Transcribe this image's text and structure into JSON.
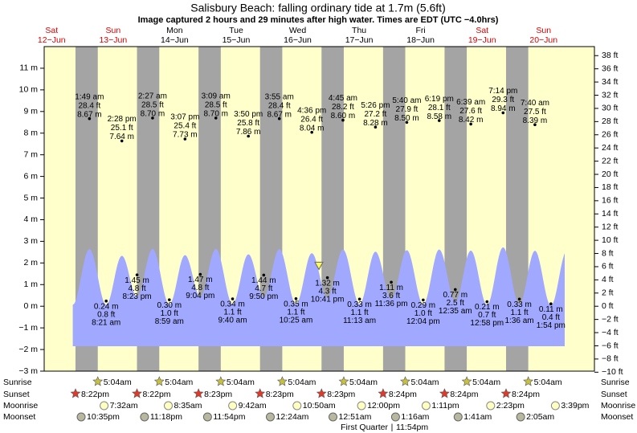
{
  "chart_data": {
    "type": "tide",
    "title": "Salisbury Beach: falling  ordinary tide at 1.7m (5.6ft)",
    "subtitle": "Image captured 2 hours and 29 minutes after high water. Times are EDT (UTC −4.0hrs)",
    "current_height_m": 1.7,
    "ylim": [
      -3,
      12
    ],
    "yticks": [
      {
        "value": -3,
        "label": "−3 m"
      },
      {
        "value": -2,
        "label": "−2 m"
      },
      {
        "value": -1,
        "label": "−1 m"
      },
      {
        "value": 0,
        "label": "0 m"
      },
      {
        "value": 1,
        "label": "1 m"
      },
      {
        "value": 2,
        "label": "2 m"
      },
      {
        "value": 3,
        "label": "3 m"
      },
      {
        "value": 4,
        "label": "4 m"
      },
      {
        "value": 5,
        "label": "5 m"
      },
      {
        "value": 6,
        "label": "6 m"
      },
      {
        "value": 7,
        "label": "7 m"
      },
      {
        "value": 8,
        "label": "8 m"
      },
      {
        "value": 9,
        "label": "9 m"
      },
      {
        "value": 10,
        "label": "10 m"
      },
      {
        "value": 11,
        "label": "11 m"
      }
    ],
    "y2lim": [
      -9.84,
      39.37
    ],
    "y2ticks": [
      {
        "value": -10,
        "label": "−10 ft"
      },
      {
        "value": -8,
        "label": "−8 ft"
      },
      {
        "value": -6,
        "label": "−6 ft"
      },
      {
        "value": -4,
        "label": "−4 ft"
      },
      {
        "value": -2,
        "label": "−2 ft"
      },
      {
        "value": 0,
        "label": "0 ft"
      },
      {
        "value": 2,
        "label": "2 ft"
      },
      {
        "value": 4,
        "label": "4 ft"
      },
      {
        "value": 6,
        "label": "6 ft"
      },
      {
        "value": 8,
        "label": "8 ft"
      },
      {
        "value": 10,
        "label": "10 ft"
      },
      {
        "value": 12,
        "label": "12 ft"
      },
      {
        "value": 14,
        "label": "14 ft"
      },
      {
        "value": 16,
        "label": "16 ft"
      },
      {
        "value": 18,
        "label": "18 ft"
      },
      {
        "value": 20,
        "label": "20 ft"
      },
      {
        "value": 22,
        "label": "22 ft"
      },
      {
        "value": 24,
        "label": "24 ft"
      },
      {
        "value": 26,
        "label": "26 ft"
      },
      {
        "value": 28,
        "label": "28 ft"
      },
      {
        "value": 30,
        "label": "30 ft"
      },
      {
        "value": 32,
        "label": "32 ft"
      },
      {
        "value": 34,
        "label": "34 ft"
      },
      {
        "value": 36,
        "label": "36 ft"
      },
      {
        "value": 38,
        "label": "38 ft"
      }
    ],
    "row_labels": {
      "sunrise": "Sunrise",
      "sunset": "Sunset",
      "moonrise": "Moonrise",
      "moonset": "Moonset"
    },
    "colors": {
      "plot": "#ffffcc",
      "night": "#a4a4a4",
      "water": "#a0a8ff"
    },
    "days": [
      {
        "weekday": "Sat",
        "date": "12−Jun",
        "color": "#e00000",
        "sunset": "8:22pm",
        "moonset": "10:35pm",
        "events": []
      },
      {
        "weekday": "Sun",
        "date": "13−Jun",
        "color": "#e00000",
        "sunrise": "5:04am",
        "sunset": "8:22pm",
        "moonrise": "7:32am",
        "moonset": "11:18pm",
        "events": [
          {
            "kind": "high",
            "time": "1:49 am",
            "ft": "28.4 ft",
            "m": {
              "value": 8.67,
              "label": "8.67 m"
            },
            "curve": 2.64
          },
          {
            "kind": "low",
            "time": "8:21 am",
            "ft": "0.8 ft",
            "m": {
              "value": 0.24,
              "label": "0.24 m"
            },
            "curve": 0.07
          },
          {
            "kind": "high",
            "time": "2:28 pm",
            "ft": "25.1 ft",
            "m": {
              "value": 7.64,
              "label": "7.64 m"
            },
            "curve": 2.33
          },
          {
            "kind": "low",
            "time": "8:23 pm",
            "ft": "4.8 ft",
            "m": {
              "value": 1.45,
              "label": "1.45 m"
            },
            "curve": 0.44
          }
        ]
      },
      {
        "weekday": "Mon",
        "date": "14−Jun",
        "color": "#000000",
        "sunrise": "5:04am",
        "sunset": "8:23pm",
        "moonrise": "8:35am",
        "moonset": "11:54pm",
        "events": [
          {
            "kind": "high",
            "time": "2:27 am",
            "ft": "28.5 ft",
            "m": {
              "value": 8.7,
              "label": "8.70 m"
            },
            "curve": 2.65
          },
          {
            "kind": "low",
            "time": "8:59 am",
            "ft": "1.0 ft",
            "m": {
              "value": 0.3,
              "label": "0.30 m"
            },
            "curve": 0.09
          },
          {
            "kind": "high",
            "time": "3:07 pm",
            "ft": "25.4 ft",
            "m": {
              "value": 7.73,
              "label": "7.73 m"
            },
            "curve": 2.36
          },
          {
            "kind": "low",
            "time": "9:04 pm",
            "ft": "4.8 ft",
            "m": {
              "value": 1.47,
              "label": "1.47 m"
            },
            "curve": 0.45
          }
        ]
      },
      {
        "weekday": "Tue",
        "date": "15−Jun",
        "color": "#000000",
        "sunrise": "5:04am",
        "sunset": "8:23pm",
        "moonrise": "9:42am",
        "events": [
          {
            "kind": "high",
            "time": "3:09 am",
            "ft": "28.5 ft",
            "m": {
              "value": 8.7,
              "label": "8.70 m"
            },
            "curve": 2.65
          },
          {
            "kind": "low",
            "time": "9:40 am",
            "ft": "1.1 ft",
            "m": {
              "value": 0.34,
              "label": "0.34 m"
            },
            "curve": 0.1
          },
          {
            "kind": "high",
            "time": "3:50 pm",
            "ft": "25.8 ft",
            "m": {
              "value": 7.86,
              "label": "7.86 m"
            },
            "curve": 2.4
          },
          {
            "kind": "low",
            "time": "9:50 pm",
            "ft": "4.7 ft",
            "m": {
              "value": 1.44,
              "label": "1.44 m"
            },
            "curve": 0.44
          }
        ]
      },
      {
        "weekday": "Wed",
        "date": "16−Jun",
        "color": "#000000",
        "sunrise": "5:04am",
        "sunset": "8:23pm",
        "moonrise": "10:50am",
        "moonset": "12:24am",
        "events": [
          {
            "kind": "high",
            "time": "3:55 am",
            "ft": "28.4 ft",
            "m": {
              "value": 8.67,
              "label": "8.67 m"
            },
            "curve": 2.64
          },
          {
            "kind": "low",
            "time": "10:25 am",
            "ft": "1.1 ft",
            "m": {
              "value": 0.35,
              "label": "0.35 m"
            },
            "curve": 0.11
          },
          {
            "kind": "high",
            "time": "4:36 pm",
            "ft": "26.4 ft",
            "m": {
              "value": 8.04,
              "label": "8.04 m"
            },
            "curve": 2.45
          },
          {
            "kind": "low",
            "time": "10:41 pm",
            "ft": "4.3 ft",
            "m": {
              "value": 1.32,
              "label": "1.32 m"
            },
            "curve": 0.4
          }
        ]
      },
      {
        "weekday": "Thu",
        "date": "17−Jun",
        "color": "#000000",
        "sunrise": "5:04am",
        "sunset": "8:24pm",
        "moonrise": "12:00pm",
        "moonset": "12:51am",
        "moon_phase": "First Quarter",
        "moon_phase_time": "11:54pm",
        "events": [
          {
            "kind": "high",
            "time": "4:45 am",
            "ft": "28.2 ft",
            "m": {
              "value": 8.6,
              "label": "8.60 m"
            },
            "curve": 2.62
          },
          {
            "kind": "low",
            "time": "11:13 am",
            "ft": "1.1 ft",
            "m": {
              "value": 0.33,
              "label": "0.33 m"
            },
            "curve": 0.1
          },
          {
            "kind": "high",
            "time": "5:26 pm",
            "ft": "27.2 ft",
            "m": {
              "value": 8.28,
              "label": "8.28 m"
            },
            "curve": 2.52
          },
          {
            "kind": "low",
            "time": "11:36 pm",
            "ft": "3.6 ft",
            "m": {
              "value": 1.11,
              "label": "1.11 m"
            },
            "curve": 0.34
          }
        ]
      },
      {
        "weekday": "Fri",
        "date": "18−Jun",
        "color": "#000000",
        "sunrise": "5:04am",
        "sunset": "8:24pm",
        "moonrise": "1:11pm",
        "moonset": "1:16am",
        "events": [
          {
            "kind": "high",
            "time": "5:40 am",
            "ft": "27.9 ft",
            "m": {
              "value": 8.5,
              "label": "8.50 m"
            },
            "curve": 2.59
          },
          {
            "kind": "low",
            "time": "12:04 pm",
            "ft": "1.0 ft",
            "m": {
              "value": 0.29,
              "label": "0.29 m"
            },
            "curve": 0.09
          },
          {
            "kind": "high",
            "time": "6:19 pm",
            "ft": "28.1 ft",
            "m": {
              "value": 8.58,
              "label": "8.58 m"
            },
            "curve": 2.62
          }
        ]
      },
      {
        "weekday": "Sat",
        "date": "19−Jun",
        "color": "#e00000",
        "sunrise": "5:04am",
        "sunset": "8:24pm",
        "moonrise": "2:23pm",
        "moonset": "1:41am",
        "events": [
          {
            "kind": "low",
            "time": "12:35 am",
            "ft": "2.5 ft",
            "m": {
              "value": 0.77,
              "label": "0.77 m"
            },
            "curve": 0.23
          },
          {
            "kind": "high",
            "time": "6:39 am",
            "ft": "27.6 ft",
            "m": {
              "value": 8.42,
              "label": "8.42 m"
            },
            "curve": 2.57
          },
          {
            "kind": "low",
            "time": "12:58 pm",
            "ft": "0.7 ft",
            "m": {
              "value": 0.21,
              "label": "0.21 m"
            },
            "curve": 0.06
          },
          {
            "kind": "high",
            "time": "7:14 pm",
            "ft": "29.3 ft",
            "m": {
              "value": 8.94,
              "label": "8.94 m"
            },
            "curve": 2.72
          }
        ]
      },
      {
        "weekday": "Sun",
        "date": "20−Jun",
        "color": "#e00000",
        "sunrise": "5:04am",
        "moonrise": "3:39pm",
        "moonset": "2:05am",
        "events": [
          {
            "kind": "low",
            "time": "1:36 am",
            "ft": "1.1 ft",
            "m": {
              "value": 0.33,
              "label": "0.33 m"
            },
            "curve": 0.1
          },
          {
            "kind": "high",
            "time": "7:40 am",
            "ft": "27.5 ft",
            "m": {
              "value": 8.39,
              "label": "8.39 m"
            },
            "curve": 2.56
          },
          {
            "kind": "low",
            "time": "1:54 pm",
            "ft": "0.4 ft",
            "m": {
              "value": 0.11,
              "label": "0.11 m"
            },
            "curve": 0.03
          }
        ]
      }
    ]
  }
}
